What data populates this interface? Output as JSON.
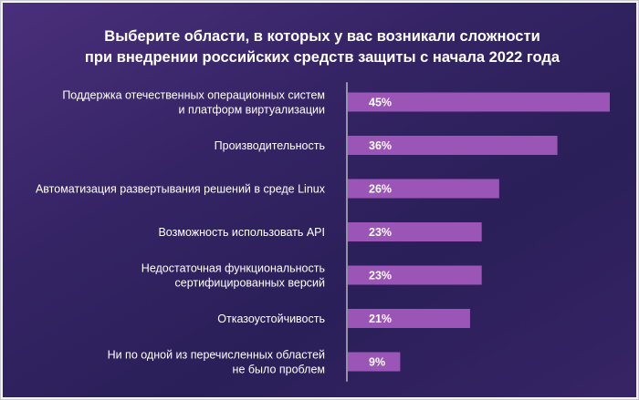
{
  "title": {
    "line1": "Выберите области, в которых у вас возникали сложности",
    "line2": "при внедрении российских средств защиты с начала 2022 года"
  },
  "colors": {
    "bar": "#9a55b6",
    "background": "#2f2260",
    "text": "#ffffff"
  },
  "chart_data": {
    "type": "bar",
    "orientation": "horizontal",
    "title": "Выберите области, в которых у вас возникали сложности при внедрении российских средств защиты с начала 2022 года",
    "categories": [
      [
        "Поддержка отечественных операционных систем",
        "и платформ виртуализации"
      ],
      [
        "Производительность"
      ],
      [
        "Автоматизация развертывания решений в среде Linux"
      ],
      [
        "Возможность использовать API"
      ],
      [
        "Недостаточная функциональность",
        "сертифицированных версий"
      ],
      [
        "Отказоустойчивость"
      ],
      [
        "Ни по одной из перечисленных областей",
        "не было проблем"
      ]
    ],
    "values": [
      45,
      36,
      26,
      23,
      23,
      21,
      9
    ],
    "value_labels": [
      "45%",
      "36%",
      "26%",
      "23%",
      "23%",
      "21%",
      "9%"
    ],
    "xlim": [
      0,
      45
    ],
    "xlabel": "",
    "ylabel": "",
    "grid": false,
    "legend": "none"
  }
}
